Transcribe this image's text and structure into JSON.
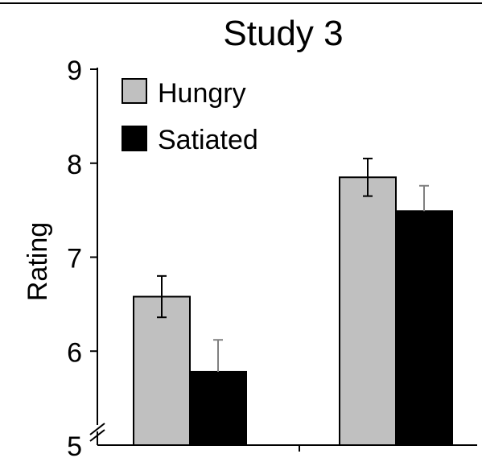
{
  "chart_data": {
    "type": "bar",
    "title": "Study 3",
    "ylabel": "Rating",
    "xlabel": "",
    "ylim": [
      5,
      9
    ],
    "yticks": [
      5,
      6,
      7,
      8,
      9
    ],
    "y_axis_break": true,
    "grid": false,
    "legend_position": "top-left",
    "categories": [
      "",
      ""
    ],
    "series": [
      {
        "name": "Hungry",
        "color": "#c0c0c0",
        "values": [
          6.58,
          7.85
        ],
        "errors": [
          0.22,
          0.2
        ]
      },
      {
        "name": "Satiated",
        "color": "#000000",
        "values": [
          5.78,
          7.49
        ],
        "errors": [
          0.34,
          0.27
        ]
      }
    ]
  }
}
